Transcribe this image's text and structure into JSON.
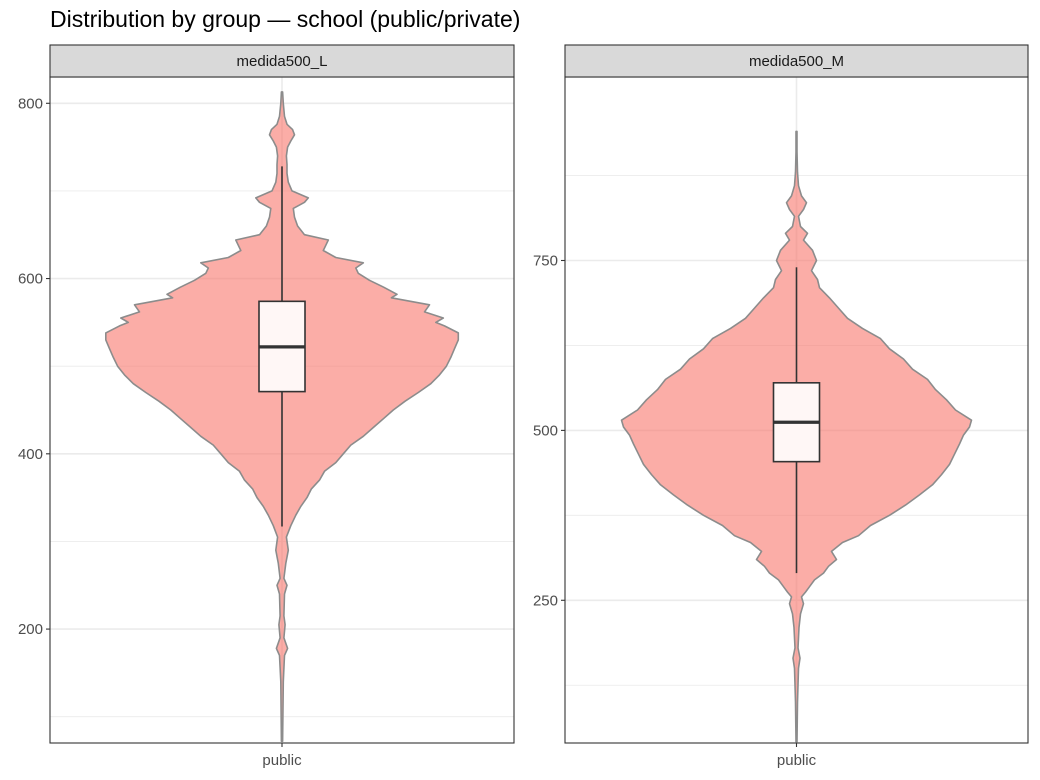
{
  "title": "Distribution by group — school (public/private)",
  "chart_data": [
    {
      "type": "violin",
      "panel": "medida500_L",
      "category": "public",
      "ylim": [
        70,
        830
      ],
      "major_ticks": [
        200,
        400,
        600,
        800
      ],
      "minor_ticks": [
        100,
        300,
        500,
        700
      ],
      "box": {
        "q1": 471,
        "median": 522,
        "q3": 574,
        "whisker_low": 317,
        "whisker_high": 728
      },
      "violin_range": [
        72,
        813
      ],
      "violin_profile": [
        [
          72,
          1
        ],
        [
          140,
          2
        ],
        [
          170,
          4
        ],
        [
          178,
          9
        ],
        [
          190,
          3
        ],
        [
          205,
          5
        ],
        [
          215,
          3
        ],
        [
          240,
          4
        ],
        [
          250,
          8
        ],
        [
          258,
          3
        ],
        [
          275,
          6
        ],
        [
          290,
          10
        ],
        [
          305,
          7
        ],
        [
          318,
          14
        ],
        [
          330,
          22
        ],
        [
          340,
          30
        ],
        [
          350,
          40
        ],
        [
          360,
          47
        ],
        [
          370,
          60
        ],
        [
          380,
          68
        ],
        [
          390,
          86
        ],
        [
          400,
          98
        ],
        [
          410,
          110
        ],
        [
          420,
          130
        ],
        [
          430,
          146
        ],
        [
          440,
          162
        ],
        [
          450,
          178
        ],
        [
          460,
          197
        ],
        [
          470,
          218
        ],
        [
          480,
          238
        ],
        [
          490,
          252
        ],
        [
          500,
          263
        ],
        [
          510,
          270
        ],
        [
          520,
          276
        ],
        [
          530,
          282
        ],
        [
          538,
          282
        ],
        [
          546,
          260
        ],
        [
          550,
          246
        ],
        [
          555,
          258
        ],
        [
          562,
          228
        ],
        [
          570,
          236
        ],
        [
          578,
          175
        ],
        [
          582,
          184
        ],
        [
          590,
          163
        ],
        [
          598,
          140
        ],
        [
          606,
          122
        ],
        [
          612,
          118
        ],
        [
          618,
          130
        ],
        [
          624,
          86
        ],
        [
          632,
          66
        ],
        [
          638,
          70
        ],
        [
          644,
          74
        ],
        [
          650,
          36
        ],
        [
          660,
          25
        ],
        [
          670,
          20
        ],
        [
          680,
          18
        ],
        [
          687,
          36
        ],
        [
          692,
          42
        ],
        [
          700,
          16
        ],
        [
          710,
          10
        ],
        [
          720,
          8
        ],
        [
          730,
          8
        ],
        [
          740,
          7
        ],
        [
          750,
          9
        ],
        [
          757,
          14
        ],
        [
          764,
          20
        ],
        [
          770,
          17
        ],
        [
          776,
          8
        ],
        [
          785,
          4
        ],
        [
          800,
          2
        ],
        [
          813,
          1
        ]
      ]
    },
    {
      "type": "violin",
      "panel": "medida500_M",
      "category": "public",
      "ylim": [
        40,
        1020
      ],
      "major_ticks": [
        250,
        500,
        750
      ],
      "minor_ticks": [
        125,
        375,
        625,
        875
      ],
      "box": {
        "q1": 454,
        "median": 512,
        "q3": 570,
        "whisker_low": 290,
        "whisker_high": 740
      },
      "violin_range": [
        42,
        940
      ],
      "violin_profile": [
        [
          42,
          1
        ],
        [
          100,
          2
        ],
        [
          150,
          4
        ],
        [
          165,
          7
        ],
        [
          180,
          3
        ],
        [
          210,
          5
        ],
        [
          230,
          8
        ],
        [
          245,
          14
        ],
        [
          255,
          10
        ],
        [
          262,
          18
        ],
        [
          270,
          26
        ],
        [
          280,
          36
        ],
        [
          290,
          54
        ],
        [
          300,
          64
        ],
        [
          310,
          80
        ],
        [
          322,
          70
        ],
        [
          335,
          92
        ],
        [
          345,
          124
        ],
        [
          360,
          148
        ],
        [
          375,
          186
        ],
        [
          390,
          218
        ],
        [
          405,
          246
        ],
        [
          420,
          272
        ],
        [
          435,
          290
        ],
        [
          450,
          306
        ],
        [
          465,
          316
        ],
        [
          480,
          326
        ],
        [
          493,
          334
        ],
        [
          505,
          346
        ],
        [
          515,
          350
        ],
        [
          530,
          318
        ],
        [
          545,
          300
        ],
        [
          560,
          278
        ],
        [
          575,
          262
        ],
        [
          590,
          232
        ],
        [
          605,
          214
        ],
        [
          620,
          186
        ],
        [
          635,
          168
        ],
        [
          650,
          132
        ],
        [
          665,
          102
        ],
        [
          680,
          84
        ],
        [
          695,
          66
        ],
        [
          710,
          46
        ],
        [
          722,
          42
        ],
        [
          735,
          30
        ],
        [
          750,
          40
        ],
        [
          765,
          32
        ],
        [
          780,
          14
        ],
        [
          790,
          22
        ],
        [
          800,
          8
        ],
        [
          815,
          4
        ],
        [
          825,
          14
        ],
        [
          835,
          20
        ],
        [
          845,
          10
        ],
        [
          860,
          4
        ],
        [
          880,
          2
        ],
        [
          910,
          1
        ],
        [
          940,
          1
        ]
      ]
    }
  ]
}
